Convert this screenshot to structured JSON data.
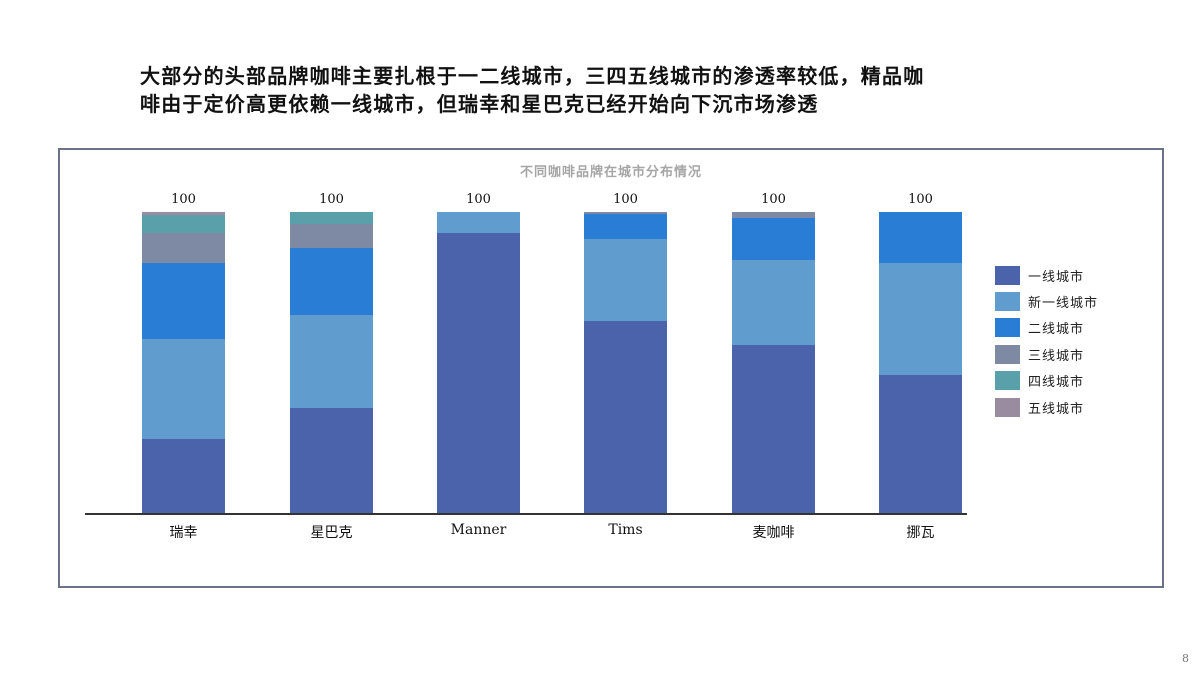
{
  "headline": {
    "line1": "大部分的头部品牌咖啡主要扎根于一二线城市，三四五线城市的渗透率较低，精品咖",
    "line2": "啡由于定价高更依赖一线城市，但瑞幸和星巴克已经开始向下沉市场渗透"
  },
  "page_number": "8",
  "chart_data": {
    "type": "bar",
    "stacked": true,
    "title": "不同咖啡品牌在城市分布情况",
    "xlabel": "",
    "ylabel": "",
    "ylim": [
      0,
      100
    ],
    "grid": false,
    "legend_position": "right",
    "categories": [
      "瑞幸",
      "星巴克",
      "Manner",
      "Tims",
      "麦咖啡",
      "挪瓦"
    ],
    "totals": [
      "100",
      "100",
      "100",
      "100",
      "100",
      "100"
    ],
    "series": [
      {
        "name": "一线城市",
        "color": "#4A63AB",
        "values": [
          25,
          35,
          93,
          64,
          56,
          46
        ]
      },
      {
        "name": "新一线城市",
        "color": "#619CCF",
        "values": [
          33,
          31,
          7,
          27,
          28,
          37
        ]
      },
      {
        "name": "二线城市",
        "color": "#2A7DD4",
        "values": [
          25,
          22,
          0,
          8.5,
          14,
          17
        ]
      },
      {
        "name": "三线城市",
        "color": "#7E8AA4",
        "values": [
          10,
          8,
          0,
          0.5,
          2,
          0
        ]
      },
      {
        "name": "四线城市",
        "color": "#5AA0AA",
        "values": [
          6,
          4,
          0,
          0,
          0,
          0
        ]
      },
      {
        "name": "五线城市",
        "color": "#998BA0",
        "values": [
          1,
          0,
          0,
          0,
          0,
          0
        ]
      }
    ]
  }
}
